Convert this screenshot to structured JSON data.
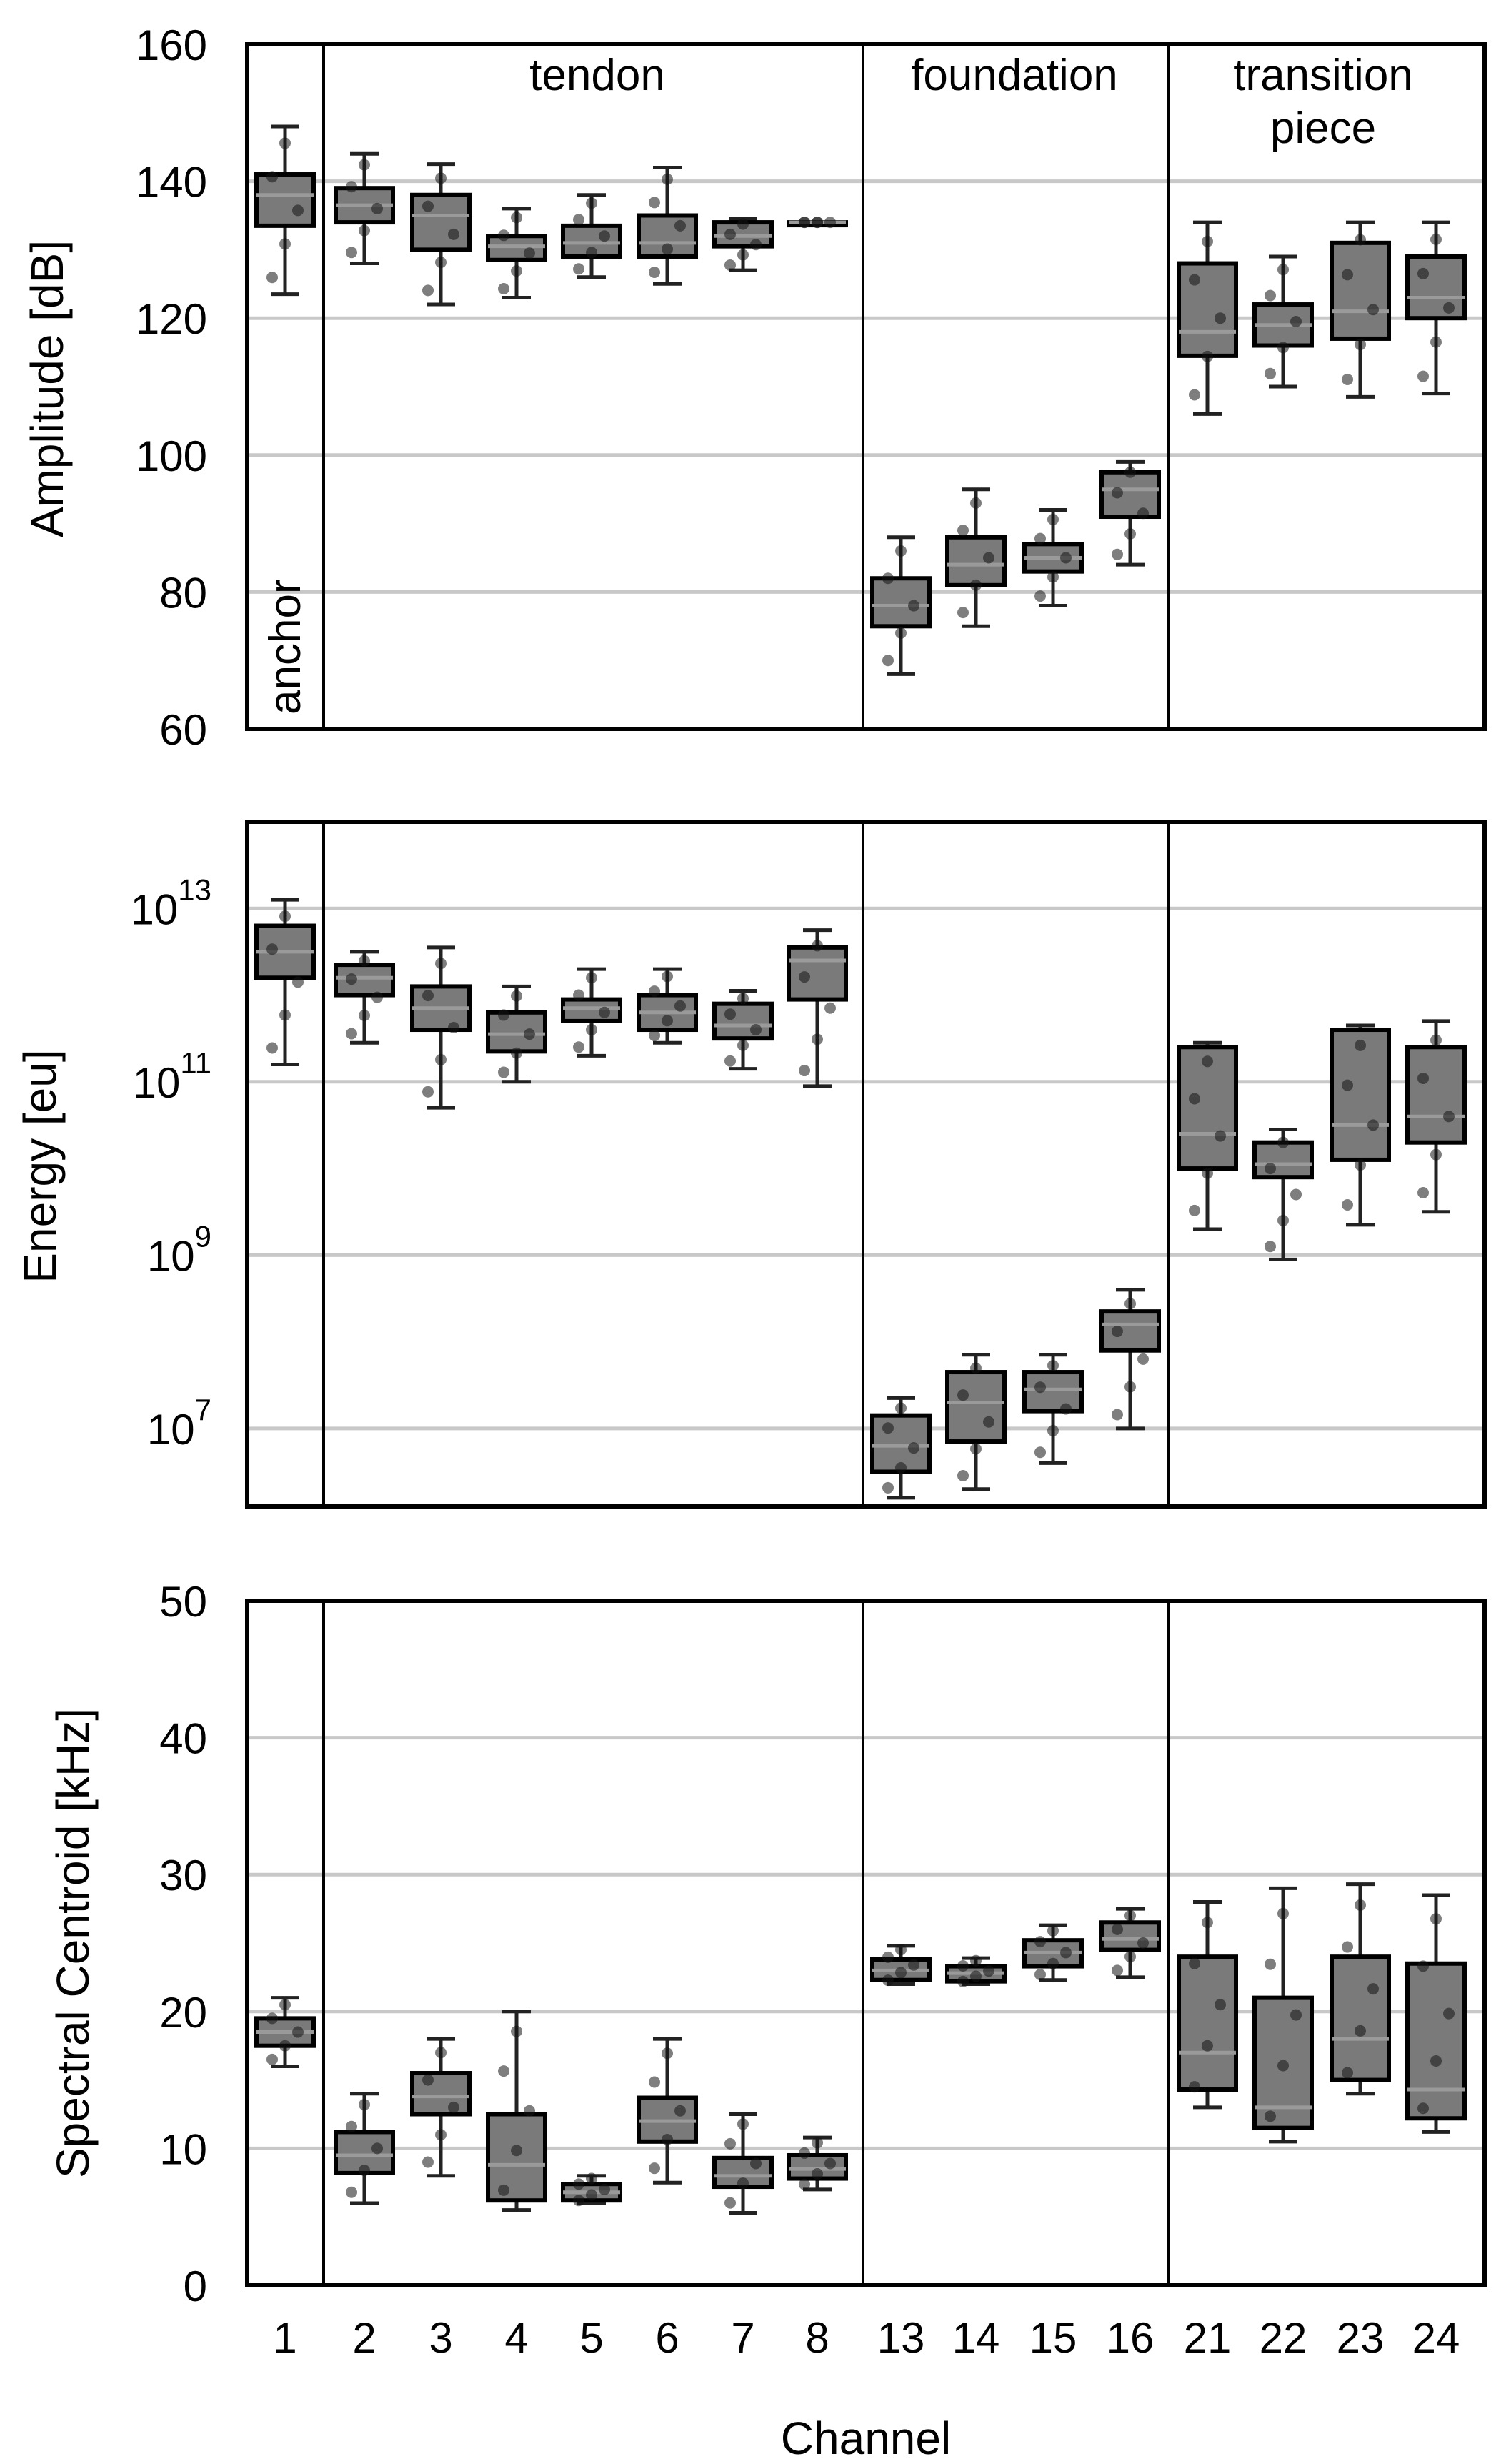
{
  "chart_data": {
    "type": "box",
    "categories": [
      "1",
      "2",
      "3",
      "4",
      "5",
      "6",
      "7",
      "8",
      "13",
      "14",
      "15",
      "16",
      "21",
      "22",
      "23",
      "24"
    ],
    "xlabel": "Channel",
    "group_labels": [
      {
        "name": "anchor",
        "channels": [
          "1"
        ]
      },
      {
        "name": "tendon",
        "channels": [
          "2",
          "3",
          "4",
          "5",
          "6",
          "7",
          "8"
        ]
      },
      {
        "name": "foundation",
        "channels": [
          "13",
          "14",
          "15",
          "16"
        ]
      },
      {
        "name": "transition",
        "name2": "piece",
        "channels": [
          "21",
          "22",
          "23",
          "24"
        ]
      }
    ],
    "panels": [
      {
        "key": "amplitude",
        "ylabel": "Amplitude [dB]",
        "scale": "linear",
        "ylim": [
          60,
          160
        ],
        "yticks": [
          "60",
          "80",
          "100",
          "120",
          "140",
          "160"
        ],
        "ytick_values": [
          60,
          80,
          100,
          120,
          140,
          160
        ],
        "boxes": [
          {
            "q1": 133.5,
            "median": 138,
            "q3": 141,
            "lo": 123.5,
            "hi": 148
          },
          {
            "q1": 134,
            "median": 136.5,
            "q3": 139,
            "lo": 128,
            "hi": 144
          },
          {
            "q1": 130,
            "median": 135,
            "q3": 138,
            "lo": 122,
            "hi": 142.5
          },
          {
            "q1": 128.5,
            "median": 130.5,
            "q3": 132,
            "lo": 123,
            "hi": 136
          },
          {
            "q1": 129,
            "median": 131,
            "q3": 133.5,
            "lo": 126,
            "hi": 138
          },
          {
            "q1": 129,
            "median": 131,
            "q3": 135,
            "lo": 125,
            "hi": 142
          },
          {
            "q1": 130.5,
            "median": 132,
            "q3": 134,
            "lo": 127,
            "hi": 134.5
          },
          {
            "q1": 134,
            "median": 134,
            "q3": 134,
            "lo": 134,
            "hi": 134
          },
          {
            "q1": 75,
            "median": 78,
            "q3": 82,
            "lo": 68,
            "hi": 88
          },
          {
            "q1": 81,
            "median": 84,
            "q3": 88,
            "lo": 75,
            "hi": 95
          },
          {
            "q1": 83,
            "median": 85,
            "q3": 87,
            "lo": 78,
            "hi": 92
          },
          {
            "q1": 91,
            "median": 95,
            "q3": 97.5,
            "lo": 84,
            "hi": 99
          },
          {
            "q1": 114.5,
            "median": 118,
            "q3": 128,
            "lo": 106,
            "hi": 134
          },
          {
            "q1": 116,
            "median": 119,
            "q3": 122,
            "lo": 110,
            "hi": 129
          },
          {
            "q1": 117,
            "median": 121,
            "q3": 131,
            "lo": 108.5,
            "hi": 134
          },
          {
            "q1": 120,
            "median": 123,
            "q3": 129,
            "lo": 109,
            "hi": 134
          }
        ]
      },
      {
        "key": "energy",
        "ylabel": "Energy [eu]",
        "scale": "log",
        "ylim_log10": [
          6.1,
          14.0
        ],
        "yticks_base": [
          "10",
          "10",
          "10",
          "10"
        ],
        "yticks_exp": [
          "7",
          "9",
          "11",
          "13"
        ],
        "ytick_values_log10": [
          7,
          9,
          11,
          13
        ],
        "boxes_log10": [
          {
            "q1": 12.2,
            "median": 12.5,
            "q3": 12.8,
            "lo": 11.2,
            "hi": 13.1
          },
          {
            "q1": 12.0,
            "median": 12.2,
            "q3": 12.35,
            "lo": 11.45,
            "hi": 12.5
          },
          {
            "q1": 11.6,
            "median": 11.85,
            "q3": 12.1,
            "lo": 10.7,
            "hi": 12.55
          },
          {
            "q1": 11.35,
            "median": 11.55,
            "q3": 11.8,
            "lo": 11.0,
            "hi": 12.1
          },
          {
            "q1": 11.7,
            "median": 11.85,
            "q3": 11.95,
            "lo": 11.3,
            "hi": 12.3
          },
          {
            "q1": 11.6,
            "median": 11.8,
            "q3": 12.0,
            "lo": 11.45,
            "hi": 12.3
          },
          {
            "q1": 11.5,
            "median": 11.65,
            "q3": 11.9,
            "lo": 11.15,
            "hi": 12.05
          },
          {
            "q1": 11.95,
            "median": 12.4,
            "q3": 12.55,
            "lo": 10.95,
            "hi": 12.75
          },
          {
            "q1": 6.5,
            "median": 6.8,
            "q3": 7.15,
            "lo": 6.2,
            "hi": 7.35
          },
          {
            "q1": 6.85,
            "median": 7.3,
            "q3": 7.65,
            "lo": 6.3,
            "hi": 7.85
          },
          {
            "q1": 7.2,
            "median": 7.45,
            "q3": 7.65,
            "lo": 6.6,
            "hi": 7.85
          },
          {
            "q1": 7.9,
            "median": 8.2,
            "q3": 8.35,
            "lo": 7.0,
            "hi": 8.6
          },
          {
            "q1": 10.0,
            "median": 10.4,
            "q3": 11.4,
            "lo": 9.3,
            "hi": 11.45
          },
          {
            "q1": 9.9,
            "median": 10.05,
            "q3": 10.3,
            "lo": 8.95,
            "hi": 10.45
          },
          {
            "q1": 10.1,
            "median": 10.5,
            "q3": 11.6,
            "lo": 9.35,
            "hi": 11.65
          },
          {
            "q1": 10.3,
            "median": 10.6,
            "q3": 11.4,
            "lo": 9.5,
            "hi": 11.7
          }
        ]
      },
      {
        "key": "centroid",
        "ylabel": "Spectral Centroid [kHz]",
        "scale": "linear",
        "ylim": [
          0,
          50
        ],
        "yticks": [
          "0",
          "10",
          "20",
          "30",
          "40",
          "50"
        ],
        "ytick_values": [
          0,
          10,
          20,
          30,
          40,
          50
        ],
        "boxes": [
          {
            "q1": 17.5,
            "median": 18.5,
            "q3": 19.5,
            "lo": 16,
            "hi": 21
          },
          {
            "q1": 8.2,
            "median": 9.5,
            "q3": 11.2,
            "lo": 6,
            "hi": 14
          },
          {
            "q1": 12.5,
            "median": 13.8,
            "q3": 15.5,
            "lo": 8,
            "hi": 18
          },
          {
            "q1": 6.2,
            "median": 8.8,
            "q3": 12.5,
            "lo": 5.5,
            "hi": 20
          },
          {
            "q1": 6.2,
            "median": 6.8,
            "q3": 7.4,
            "lo": 6,
            "hi": 8
          },
          {
            "q1": 10.5,
            "median": 12,
            "q3": 13.7,
            "lo": 7.5,
            "hi": 18
          },
          {
            "q1": 7.2,
            "median": 8,
            "q3": 9.3,
            "lo": 5.3,
            "hi": 12.5
          },
          {
            "q1": 7.8,
            "median": 8.5,
            "q3": 9.5,
            "lo": 7,
            "hi": 10.8
          },
          {
            "q1": 22.3,
            "median": 23,
            "q3": 23.8,
            "lo": 22,
            "hi": 24.8
          },
          {
            "q1": 22.2,
            "median": 22.8,
            "q3": 23.3,
            "lo": 22,
            "hi": 23.9
          },
          {
            "q1": 23.3,
            "median": 24.3,
            "q3": 25.2,
            "lo": 22.3,
            "hi": 26.3
          },
          {
            "q1": 24.5,
            "median": 25.3,
            "q3": 26.5,
            "lo": 22.5,
            "hi": 27.5
          },
          {
            "q1": 14.3,
            "median": 17,
            "q3": 24,
            "lo": 13,
            "hi": 28
          },
          {
            "q1": 11.5,
            "median": 13,
            "q3": 21,
            "lo": 10.5,
            "hi": 29
          },
          {
            "q1": 15,
            "median": 18,
            "q3": 24,
            "lo": 14,
            "hi": 29.3
          },
          {
            "q1": 12.2,
            "median": 14.3,
            "q3": 23.5,
            "lo": 11.2,
            "hi": 28.5
          }
        ]
      }
    ]
  }
}
